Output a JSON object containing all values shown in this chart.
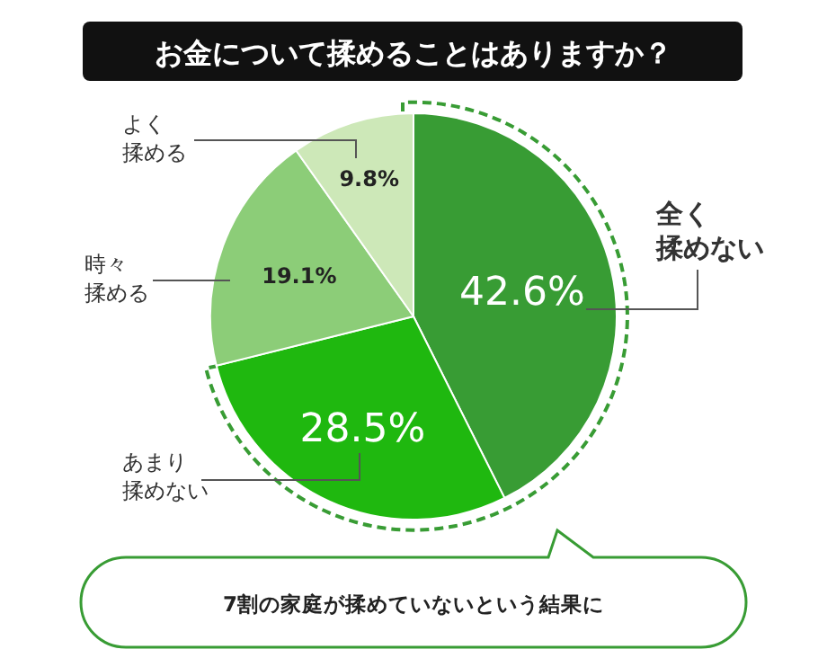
{
  "chart_data": {
    "type": "pie",
    "title": "お金について揉めることはありますか？",
    "categories": [
      "全く揉めない",
      "あまり揉めない",
      "時々揉める",
      "よく揉める"
    ],
    "values": [
      42.6,
      28.5,
      19.1,
      9.8
    ],
    "colors": [
      "#389c34",
      "#1fb80f",
      "#8ccd78",
      "#cde8b8"
    ],
    "value_labels": [
      "42.6%",
      "28.5%",
      "19.1%",
      "9.8%"
    ],
    "annotations": [
      "7割の家庭が揉めていないという結果に"
    ]
  }
}
